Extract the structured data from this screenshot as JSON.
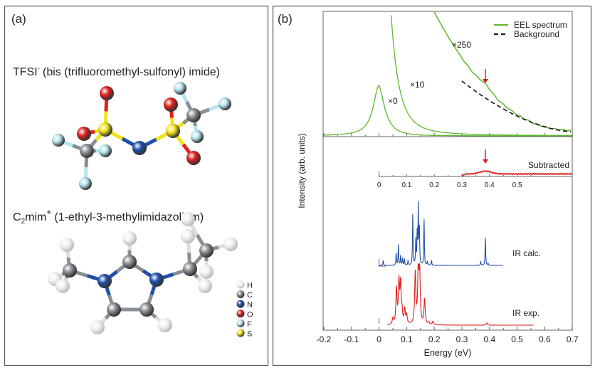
{
  "panel_a": {
    "label": "(a)",
    "tfsi_title": "TFSI",
    "tfsi_charge": "-",
    "tfsi_name": "(bis (trifluoromethyl-sulfonyl) imide)",
    "emim_title_c": "C",
    "emim_sub": "2",
    "emim_title_rest": "mim",
    "emim_charge": "+",
    "emim_name": "(1-ethyl-3-methylimidazolium)",
    "legend": [
      {
        "symbol": "H",
        "color": "#f2f2f2"
      },
      {
        "symbol": "C",
        "color": "#8a8f94"
      },
      {
        "symbol": "N",
        "color": "#1f4fa8"
      },
      {
        "symbol": "O",
        "color": "#e0201c"
      },
      {
        "symbol": "F",
        "color": "#b6e4ef"
      },
      {
        "symbol": "S",
        "color": "#f2e21c"
      }
    ]
  },
  "chart_data": {
    "type": "line",
    "panel_label": "(b)",
    "xlabel": "Energy (eV)",
    "ylabel": "Intensity (arb. units)",
    "xlim": [
      -0.2,
      0.7
    ],
    "xticks": [
      "-0.2",
      "-0.1",
      "0",
      "0.1",
      "0.2",
      "0.3",
      "0.4",
      "0.5",
      "0.6",
      "0.7"
    ],
    "inset_xticks": [
      "0",
      "0.1",
      "0.2",
      "0.3",
      "0.4",
      "0.5"
    ],
    "legend": [
      {
        "name": "EEL spectrum",
        "color": "#5cb82e",
        "style": "solid"
      },
      {
        "name": "Background",
        "color": "#111111",
        "style": "dashed"
      }
    ],
    "legend_position": "top-right",
    "eel_multipliers": [
      "×0",
      "×10",
      "×250"
    ],
    "arrow_energy": 0.385,
    "subtracted_label": "Subtracted",
    "subtracted_range": [
      0.3,
      0.7
    ],
    "subtracted_peak": 0.385,
    "ir_calc": {
      "label": "IR calc.",
      "color": "#1f4fa8",
      "range": [
        0.0,
        0.45
      ],
      "peaks": [
        [
          0.015,
          0.08
        ],
        [
          0.062,
          0.2
        ],
        [
          0.07,
          0.33
        ],
        [
          0.078,
          0.15
        ],
        [
          0.085,
          0.12
        ],
        [
          0.092,
          0.1
        ],
        [
          0.105,
          0.08
        ],
        [
          0.122,
          0.85
        ],
        [
          0.133,
          0.4
        ],
        [
          0.138,
          0.5
        ],
        [
          0.142,
          0.95
        ],
        [
          0.146,
          0.6
        ],
        [
          0.163,
          0.75
        ],
        [
          0.175,
          0.06
        ],
        [
          0.19,
          0.08
        ],
        [
          0.368,
          0.06
        ],
        [
          0.385,
          0.45
        ],
        [
          0.395,
          0.03
        ]
      ]
    },
    "ir_exp": {
      "label": "IR exp.",
      "color": "#e0201c",
      "range": [
        0.03,
        0.56
      ],
      "peaks": [
        [
          0.05,
          0.1
        ],
        [
          0.063,
          0.6
        ],
        [
          0.072,
          0.7
        ],
        [
          0.078,
          0.65
        ],
        [
          0.083,
          0.18
        ],
        [
          0.093,
          0.25
        ],
        [
          0.1,
          0.15
        ],
        [
          0.131,
          0.88
        ],
        [
          0.142,
          0.95
        ],
        [
          0.147,
          0.85
        ],
        [
          0.165,
          0.43
        ],
        [
          0.18,
          0.04
        ],
        [
          0.195,
          0.06
        ],
        [
          0.39,
          0.04
        ]
      ]
    }
  }
}
